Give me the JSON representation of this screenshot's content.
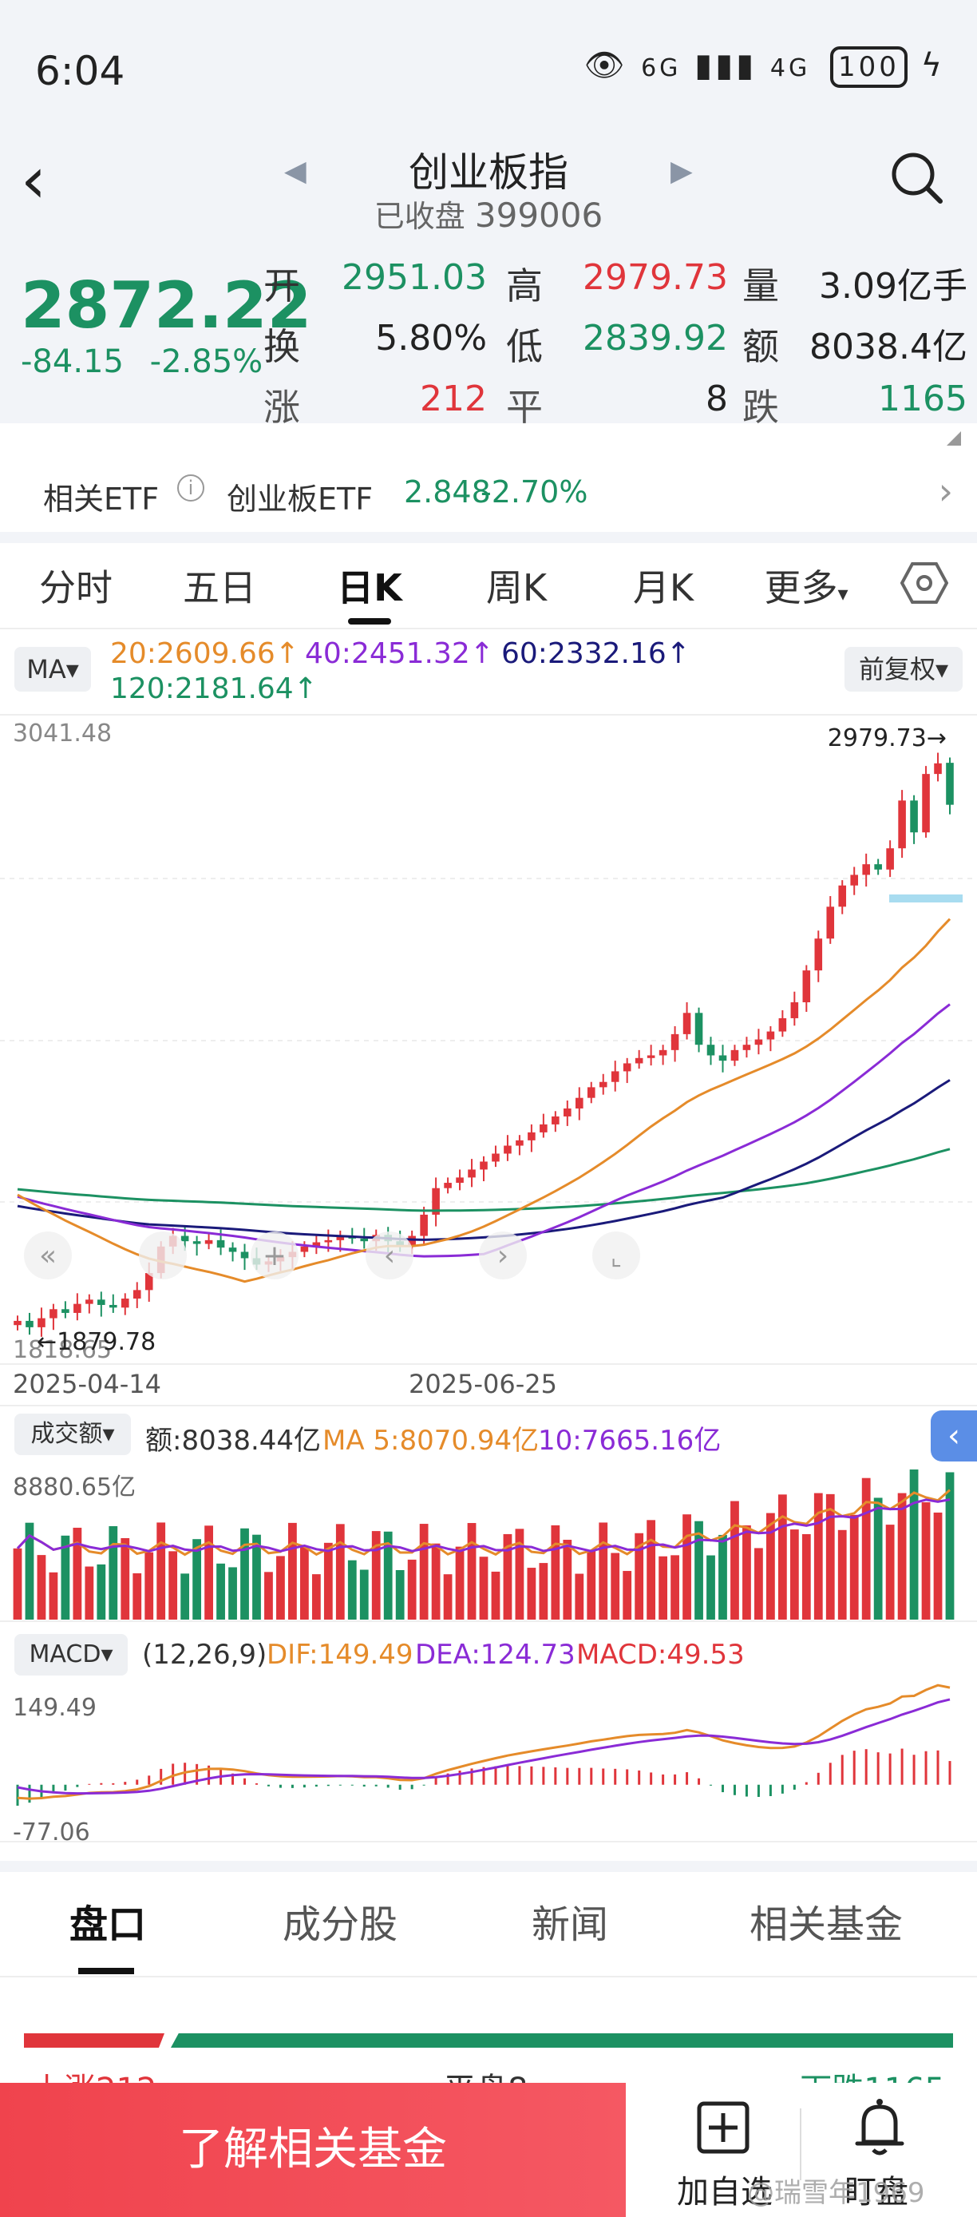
{
  "status": {
    "time": "6:04",
    "net": "6G",
    "net2": "4G",
    "battery": "100"
  },
  "header": {
    "title": "创业板指",
    "status_label": "已收盘",
    "code": "399006"
  },
  "quote": {
    "price": "2872.22",
    "change": "-84.15",
    "change_pct": "-2.85%",
    "open_label": "开",
    "open": "2951.03",
    "high_label": "高",
    "high": "2979.73",
    "volume_label": "量",
    "volume": "3.09亿手",
    "turnover_label": "换",
    "turnover": "5.80%",
    "low_label": "低",
    "low": "2839.92",
    "amount_label": "额",
    "amount": "8038.4亿",
    "up_label": "涨",
    "up_count": "212",
    "flat_label": "平",
    "flat_count": "8",
    "down_label": "跌",
    "down_count": "1165"
  },
  "etf": {
    "label": "相关ETF",
    "name": "创业板ETF",
    "price": "2.848",
    "pct": "-2.70%"
  },
  "tabs": [
    "分时",
    "五日",
    "日K",
    "周K",
    "月K",
    "更多"
  ],
  "ma": {
    "button": "MA",
    "ma20": "20:2609.66↑",
    "ma40": "40:2451.32↑",
    "ma60": "60:2332.16↑",
    "ma120": "120:2181.64↑",
    "adjust": "前复权"
  },
  "kline": {
    "top_label": "3041.48",
    "bottom_label": "1818.65",
    "high_mark": "2979.73→",
    "low_mark": "←1879.78",
    "date_start": "2025-04-14",
    "date_mid": "2025-06-25"
  },
  "volume": {
    "button": "成交额",
    "amount": "额:8038.44亿",
    "ma5": "MA 5:8070.94亿",
    "ma10": "10:7665.16亿",
    "max_label": "8880.65亿"
  },
  "macd": {
    "button": "MACD",
    "params": "(12,26,9)",
    "dif": "DIF:149.49",
    "dea": "DEA:124.73",
    "macd": "MACD:49.53",
    "top_label": "149.49",
    "bottom_label": "-77.06"
  },
  "bottom_tabs": [
    "盘口",
    "成分股",
    "新闻",
    "相关基金"
  ],
  "breadth": {
    "up": "上涨212",
    "flat": "平盘8",
    "down": "下跌1165"
  },
  "bottom_bar": {
    "fund_button": "了解相关基金",
    "add_label": "加自选",
    "watch_label": "盯盘"
  },
  "watermark": "@瑞雪年1969",
  "chart_data": {
    "type": "candlestick",
    "title": "创业板指 日K",
    "y_range": [
      1818.65,
      3041.48
    ],
    "x_range": [
      "2025-04-14",
      "2025-08"
    ],
    "high_label": 2979.73,
    "low_label": 1879.78,
    "moving_averages": {
      "ma20": 2609.66,
      "ma40": 2451.32,
      "ma60": 2332.16,
      "ma120": 2181.64
    },
    "closes": [
      1900,
      1888,
      1905,
      1922,
      1915,
      1932,
      1940,
      1930,
      1925,
      1942,
      1958,
      1990,
      2040,
      2060,
      2050,
      2045,
      2052,
      2038,
      2030,
      2018,
      2006,
      2012,
      2020,
      2030,
      2040,
      2048,
      2052,
      2060,
      2055,
      2050,
      2062,
      2050,
      2040,
      2060,
      2100,
      2150,
      2160,
      2170,
      2185,
      2200,
      2215,
      2230,
      2240,
      2255,
      2270,
      2285,
      2300,
      2320,
      2340,
      2350,
      2370,
      2385,
      2395,
      2400,
      2410,
      2440,
      2480,
      2420,
      2400,
      2390,
      2410,
      2420,
      2430,
      2445,
      2470,
      2500,
      2560,
      2620,
      2680,
      2720,
      2740,
      2760,
      2750,
      2790,
      2880,
      2820,
      2930,
      2950,
      2872
    ],
    "volume_max": 8880.65,
    "macd": {
      "dif": 149.49,
      "dea": 124.73,
      "macd": 49.53,
      "range": [
        -77.06,
        149.49
      ]
    }
  }
}
